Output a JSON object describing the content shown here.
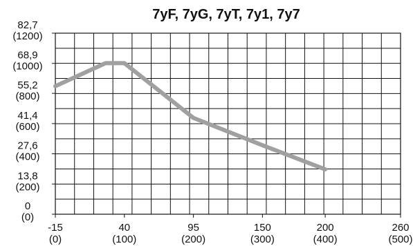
{
  "chart_data": {
    "type": "line",
    "title": "7yF, 7yG, 7yT, 7y1, 7y7",
    "xlabel": "",
    "ylabel": "",
    "xlim": [
      -15,
      260
    ],
    "ylim": [
      0,
      82.7
    ],
    "x_ticks": [
      {
        "value": -15,
        "label": "-15",
        "sublabel": "(0)"
      },
      {
        "value": 40,
        "label": "40",
        "sublabel": "(100)"
      },
      {
        "value": 95,
        "label": "95",
        "sublabel": "(200)"
      },
      {
        "value": 150,
        "label": "150",
        "sublabel": "(300)"
      },
      {
        "value": 200,
        "label": "200",
        "sublabel": "(400)"
      },
      {
        "value": 260,
        "label": "260",
        "sublabel": "(500)"
      }
    ],
    "y_ticks": [
      {
        "value": 0,
        "label": "0",
        "sublabel": "(0)"
      },
      {
        "value": 13.8,
        "label": "13,8",
        "sublabel": "(200)"
      },
      {
        "value": 27.6,
        "label": "27,6",
        "sublabel": "(400)"
      },
      {
        "value": 41.4,
        "label": "41,4",
        "sublabel": "(600)"
      },
      {
        "value": 55.2,
        "label": "55,2",
        "sublabel": "(800)"
      },
      {
        "value": 68.9,
        "label": "68,9",
        "sublabel": "(1000)"
      },
      {
        "value": 82.7,
        "label": "82,7",
        "sublabel": "(1200)"
      }
    ],
    "grid": true,
    "grid_divisions_x": 18,
    "grid_divisions_y": 12,
    "series": [
      {
        "color": "#a0a0a0",
        "x": [
          -15,
          25,
          40,
          95,
          150,
          200
        ],
        "y": [
          58.5,
          69,
          69,
          44,
          31.5,
          20.5
        ]
      }
    ]
  }
}
